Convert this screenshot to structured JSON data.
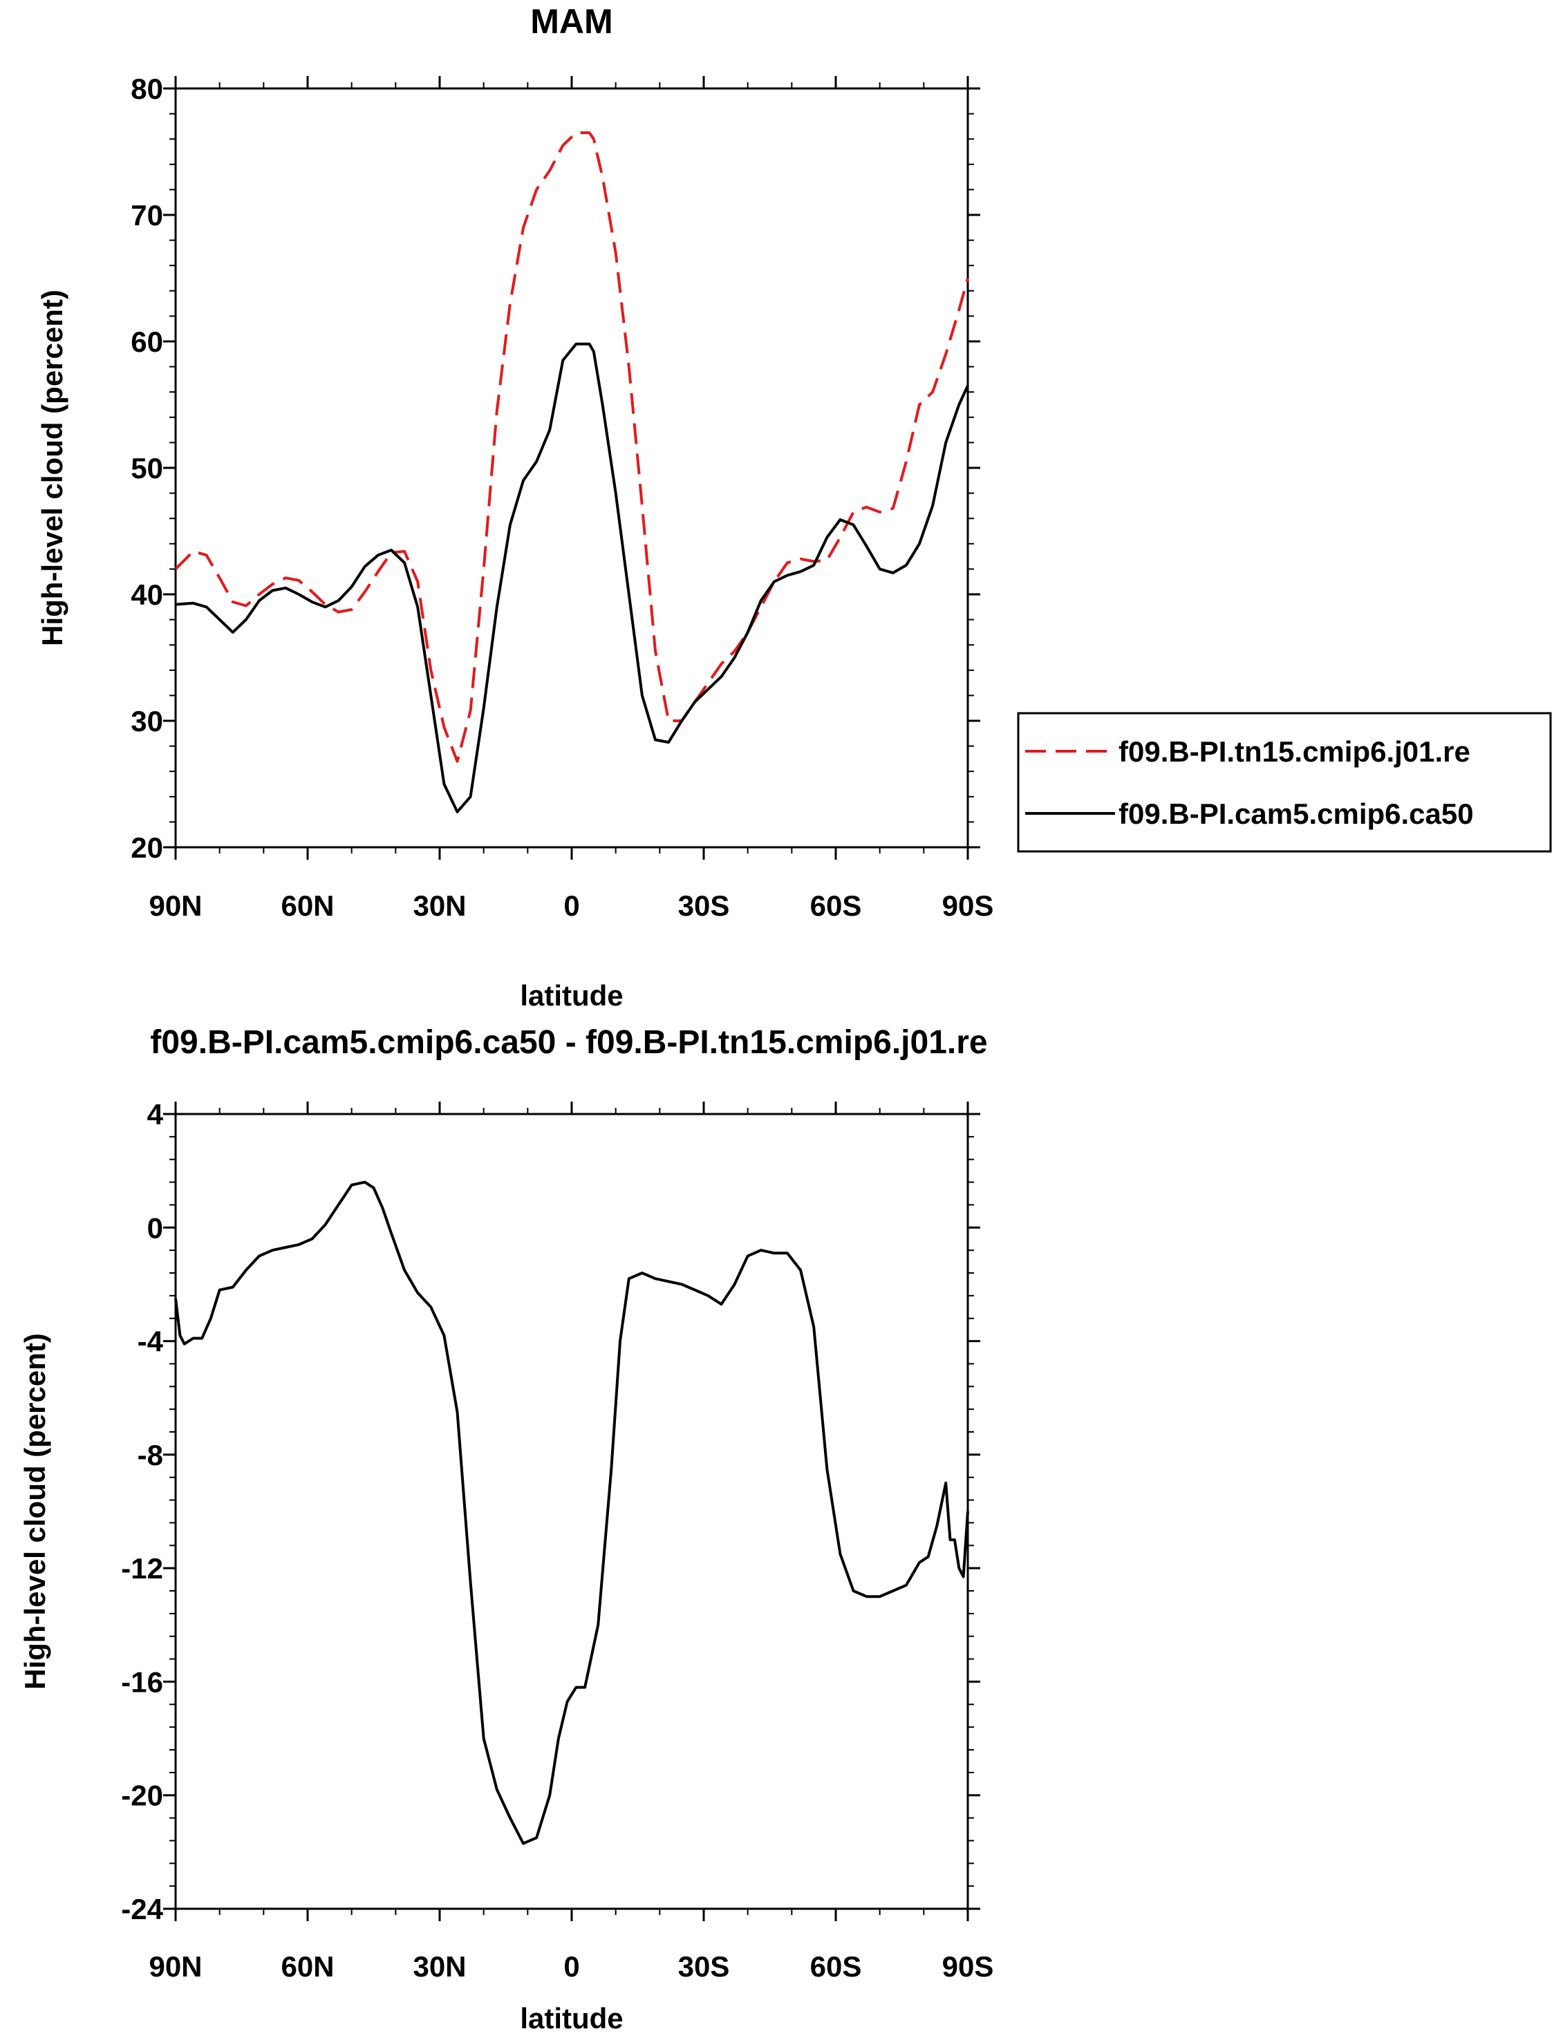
{
  "chart_data": [
    {
      "type": "line",
      "title": "MAM",
      "xlabel": "latitude",
      "ylabel": "High-level cloud (percent)",
      "x_tick_labels": [
        "90N",
        "60N",
        "30N",
        "0",
        "30S",
        "60S",
        "90S"
      ],
      "x_tick_values": [
        -90,
        -60,
        -30,
        0,
        30,
        60,
        90
      ],
      "xlim": [
        -90,
        90
      ],
      "ylim": [
        20,
        80
      ],
      "y_tick_values": [
        20,
        30,
        40,
        50,
        60,
        70,
        80
      ],
      "y_tick_labels": [
        "20",
        "30",
        "40",
        "50",
        "60",
        "70",
        "80"
      ],
      "legend": {
        "placement": "right",
        "entries": [
          "f09.B-PI.tn15.cmip6.j01.re",
          "f09.B-PI.cam5.cmip6.ca50"
        ]
      },
      "series": [
        {
          "name": "f09.B-PI.tn15.cmip6.j01.re",
          "color": "#e41a1c",
          "dash": "dashed",
          "x": [
            -90,
            -86,
            -83,
            -80,
            -77,
            -74,
            -71,
            -68,
            -65,
            -62,
            -59,
            -56,
            -53,
            -50,
            -47,
            -44,
            -41,
            -38,
            -35,
            -32,
            -29,
            -26,
            -23,
            -20,
            -17,
            -14,
            -11,
            -8,
            -5,
            -2,
            1,
            4,
            5,
            7,
            10,
            13,
            16,
            19,
            22,
            25,
            28,
            31,
            34,
            37,
            40,
            43,
            46,
            49,
            52,
            55,
            58,
            61,
            64,
            67,
            70,
            73,
            76,
            79,
            82,
            85,
            88,
            90
          ],
          "y": [
            42.0,
            43.4,
            43.1,
            41.3,
            39.4,
            39.1,
            40.0,
            40.8,
            41.3,
            41.1,
            40.2,
            39.2,
            38.6,
            38.8,
            40.2,
            41.8,
            43.3,
            43.4,
            41.0,
            34.0,
            29.5,
            26.8,
            30.8,
            42.0,
            54.5,
            63.0,
            69.0,
            72.0,
            73.5,
            75.5,
            76.5,
            76.5,
            76.0,
            73.0,
            67.0,
            58.0,
            47.0,
            35.5,
            30.0,
            30.0,
            31.5,
            33.0,
            34.5,
            35.5,
            37.0,
            39.0,
            41.0,
            42.5,
            42.8,
            42.6,
            42.7,
            44.5,
            46.5,
            46.9,
            46.5,
            46.8,
            50.5,
            55.0,
            56.0,
            59.0,
            62.5,
            65.0
          ]
        },
        {
          "name": "f09.B-PI.cam5.cmip6.ca50",
          "color": "#000000",
          "dash": "solid",
          "x": [
            -90,
            -86,
            -83,
            -80,
            -77,
            -74,
            -71,
            -68,
            -65,
            -62,
            -59,
            -56,
            -53,
            -50,
            -47,
            -44,
            -41,
            -38,
            -35,
            -32,
            -29,
            -26,
            -23,
            -20,
            -17,
            -14,
            -11,
            -8,
            -5,
            -2,
            1,
            4,
            5,
            7,
            10,
            13,
            16,
            19,
            22,
            25,
            28,
            31,
            34,
            37,
            40,
            43,
            46,
            49,
            52,
            55,
            58,
            61,
            64,
            67,
            70,
            73,
            76,
            79,
            82,
            85,
            88,
            90
          ],
          "y": [
            39.2,
            39.3,
            39.0,
            38.0,
            37.0,
            38.0,
            39.5,
            40.3,
            40.5,
            40.0,
            39.4,
            39.0,
            39.5,
            40.6,
            42.2,
            43.1,
            43.5,
            42.5,
            39.0,
            32.0,
            25.0,
            22.8,
            24.0,
            31.0,
            39.0,
            45.5,
            49.0,
            50.5,
            53.0,
            58.5,
            59.8,
            59.8,
            59.2,
            55.0,
            48.0,
            40.0,
            32.0,
            28.5,
            28.3,
            30.0,
            31.5,
            32.5,
            33.5,
            35.0,
            37.0,
            39.5,
            41.0,
            41.5,
            41.8,
            42.3,
            44.5,
            45.9,
            45.5,
            43.8,
            42.0,
            41.7,
            42.3,
            44.0,
            47.0,
            52.0,
            55.0,
            56.5
          ]
        }
      ]
    },
    {
      "type": "line",
      "title": "f09.B-PI.cam5.cmip6.ca50 - f09.B-PI.tn15.cmip6.j01.re",
      "xlabel": "latitude",
      "ylabel": "High-level cloud (percent)",
      "x_tick_labels": [
        "90N",
        "60N",
        "30N",
        "0",
        "30S",
        "60S",
        "90S"
      ],
      "x_tick_values": [
        -90,
        -60,
        -30,
        0,
        30,
        60,
        90
      ],
      "xlim": [
        -90,
        90
      ],
      "ylim": [
        -24,
        4
      ],
      "y_tick_values": [
        -24,
        -20,
        -16,
        -12,
        -8,
        -4,
        0,
        4
      ],
      "y_tick_labels": [
        "-24",
        "-20",
        "-16",
        "-12",
        "-8",
        "-4",
        "0",
        "4"
      ],
      "series": [
        {
          "color": "#000000",
          "dash": "solid",
          "x": [
            -90,
            -89,
            -88,
            -86,
            -84,
            -82,
            -80,
            -77,
            -74,
            -71,
            -68,
            -65,
            -62,
            -59,
            -56,
            -53,
            -50,
            -47,
            -45,
            -43,
            -41,
            -38,
            -35,
            -32,
            -29,
            -26,
            -23,
            -20,
            -17,
            -14,
            -11,
            -8,
            -5,
            -3,
            -1,
            1,
            3,
            6,
            9,
            11,
            13,
            16,
            19,
            22,
            25,
            28,
            31,
            34,
            37,
            40,
            43,
            46,
            49,
            52,
            55,
            58,
            61,
            64,
            67,
            70,
            73,
            76,
            79,
            81,
            83,
            85,
            86,
            87,
            88,
            89,
            90
          ],
          "y": [
            -2.5,
            -3.8,
            -4.1,
            -3.9,
            -3.9,
            -3.2,
            -2.2,
            -2.1,
            -1.5,
            -1.0,
            -0.8,
            -0.7,
            -0.6,
            -0.4,
            0.1,
            0.8,
            1.5,
            1.6,
            1.4,
            0.7,
            -0.2,
            -1.5,
            -2.3,
            -2.8,
            -3.8,
            -6.5,
            -12.5,
            -18.0,
            -19.8,
            -20.8,
            -21.7,
            -21.5,
            -20.0,
            -18.0,
            -16.7,
            -16.2,
            -16.2,
            -14.0,
            -8.5,
            -4.0,
            -1.8,
            -1.6,
            -1.8,
            -1.9,
            -2.0,
            -2.2,
            -2.4,
            -2.7,
            -2.0,
            -1.0,
            -0.8,
            -0.9,
            -0.9,
            -1.5,
            -3.5,
            -8.5,
            -11.5,
            -12.8,
            -13.0,
            -13.0,
            -12.8,
            -12.6,
            -11.8,
            -11.6,
            -10.5,
            -9.0,
            -11.0,
            -11.0,
            -12.0,
            -12.3,
            -10.0
          ]
        }
      ]
    }
  ]
}
